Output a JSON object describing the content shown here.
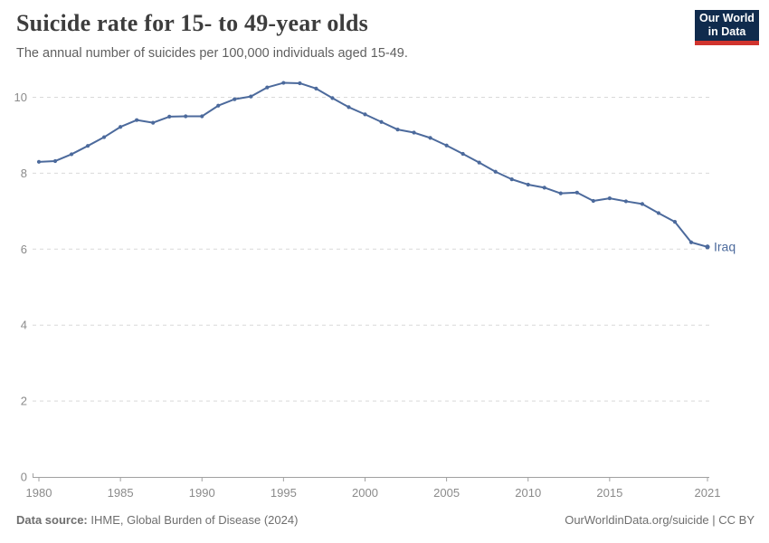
{
  "header": {
    "title": "Suicide rate for 15- to 49-year olds",
    "subtitle": "The annual number of suicides per 100,000 individuals aged 15-49.",
    "logo": {
      "line1": "Our World",
      "line2": "in Data"
    }
  },
  "chart_data": {
    "type": "line",
    "title": "Suicide rate for 15- to 49-year olds",
    "xlabel": "",
    "ylabel": "",
    "xlim": [
      1980,
      2021
    ],
    "ylim": [
      0,
      10.5
    ],
    "x_ticks": [
      1980,
      1985,
      1990,
      1995,
      2000,
      2005,
      2010,
      2015,
      2021
    ],
    "y_ticks": [
      0,
      2,
      4,
      6,
      8,
      10
    ],
    "grid": "horizontal-dashed",
    "legend": "label-at-line-end",
    "colors": {
      "grid": "#d9d9d9",
      "axis": "#a1a1a1",
      "tick_text": "#8b8b8b"
    },
    "series": [
      {
        "name": "Iraq",
        "color": "#4c6a9c",
        "years": [
          1980,
          1981,
          1982,
          1983,
          1984,
          1985,
          1986,
          1987,
          1988,
          1989,
          1990,
          1991,
          1992,
          1993,
          1994,
          1995,
          1996,
          1997,
          1998,
          1999,
          2000,
          2001,
          2002,
          2003,
          2004,
          2005,
          2006,
          2007,
          2008,
          2009,
          2010,
          2011,
          2012,
          2013,
          2014,
          2015,
          2016,
          2017,
          2018,
          2019,
          2020,
          2021
        ],
        "values": [
          8.3,
          8.32,
          8.5,
          8.72,
          8.95,
          9.22,
          9.4,
          9.33,
          9.49,
          9.5,
          9.5,
          9.78,
          9.95,
          10.02,
          10.26,
          10.38,
          10.37,
          10.23,
          9.98,
          9.74,
          9.55,
          9.35,
          9.15,
          9.07,
          8.93,
          8.73,
          8.51,
          8.28,
          8.04,
          7.84,
          7.7,
          7.62,
          7.47,
          7.49,
          7.27,
          7.34,
          7.26,
          7.19,
          6.95,
          6.72,
          6.18,
          6.06
        ]
      }
    ]
  },
  "footer": {
    "source_label": "Data source:",
    "source_text": " IHME, Global Burden of Disease (2024)",
    "right_text": "OurWorldinData.org/suicide | CC BY"
  }
}
